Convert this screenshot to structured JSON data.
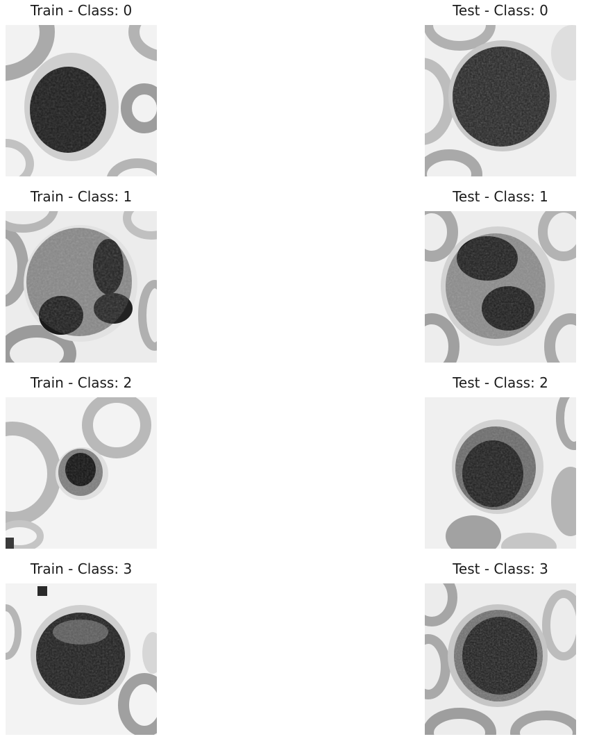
{
  "figure": {
    "panels": [
      {
        "title": "Train - Class: 0",
        "image": "blood-cell-image"
      },
      {
        "title": "Test - Class: 0",
        "image": "blood-cell-image"
      },
      {
        "title": "Train - Class: 1",
        "image": "blood-cell-image"
      },
      {
        "title": "Test - Class: 1",
        "image": "blood-cell-image"
      },
      {
        "title": "Train - Class: 2",
        "image": "blood-cell-image"
      },
      {
        "title": "Test - Class: 2",
        "image": "blood-cell-image"
      },
      {
        "title": "Train - Class: 3",
        "image": "blood-cell-image"
      },
      {
        "title": "Test - Class: 3",
        "image": "blood-cell-image"
      }
    ]
  }
}
